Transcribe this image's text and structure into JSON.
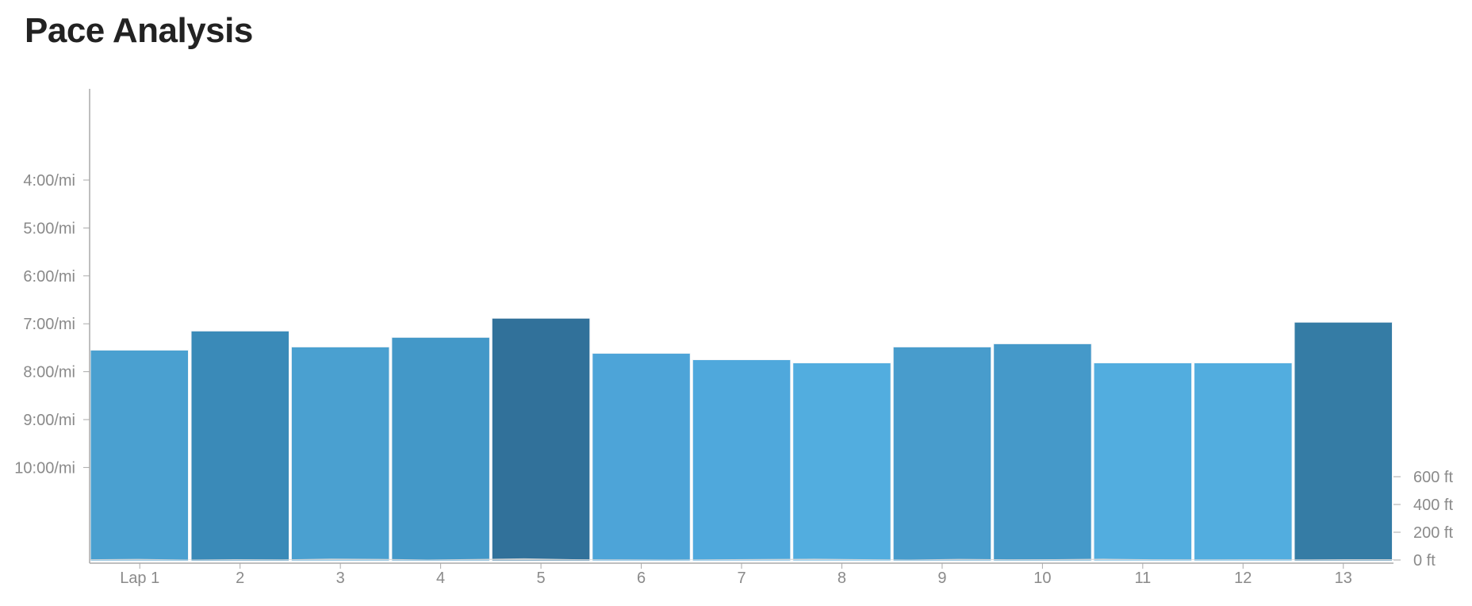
{
  "page": {
    "title": "Pace Analysis"
  },
  "chart_data": {
    "type": "bar",
    "title": "Pace Analysis",
    "categories": [
      "Lap 1",
      "2",
      "3",
      "4",
      "5",
      "6",
      "7",
      "8",
      "9",
      "10",
      "11",
      "12",
      "13"
    ],
    "series": [
      {
        "unit": "sec/mi",
        "values": [
          453,
          429,
          449,
          437,
          413,
          457,
          465,
          469,
          449,
          445,
          469,
          469,
          418
        ],
        "colors": [
          "#4aa0d0",
          "#3a8ab8",
          "#4aa0d0",
          "#4398c8",
          "#31719a",
          "#4da4d8",
          "#4fa8dc",
          "#52addf",
          "#489ccc",
          "#4599c9",
          "#52addf",
          "#52addf",
          "#357ca5"
        ]
      }
    ],
    "y_axis": {
      "ticks": [
        240,
        300,
        360,
        420,
        480,
        540,
        600
      ],
      "tick_labels": [
        "4:00/mi",
        "5:00/mi",
        "6:00/mi",
        "7:00/mi",
        "8:00/mi",
        "9:00/mi",
        "10:00/mi"
      ],
      "orientation": "slower paces lower"
    },
    "y2_axis": {
      "ticks": [
        0,
        200,
        400,
        600
      ],
      "tick_labels": [
        "0 ft",
        "200 ft",
        "400 ft",
        "600 ft"
      ],
      "range": [
        0,
        700
      ]
    },
    "elevation_ft": [
      5,
      8,
      3,
      6,
      4,
      10,
      8,
      3,
      7,
      12,
      6,
      4,
      3,
      5,
      7,
      9,
      6,
      3,
      8,
      5,
      6,
      9,
      5,
      4,
      5,
      4,
      6,
      6
    ],
    "grid": false,
    "legend": "none",
    "colors": {
      "axis": "#aaaaaa",
      "tick_label": "#8a8a8a",
      "title": "#222222",
      "elevation": "#d9d9d9"
    }
  }
}
